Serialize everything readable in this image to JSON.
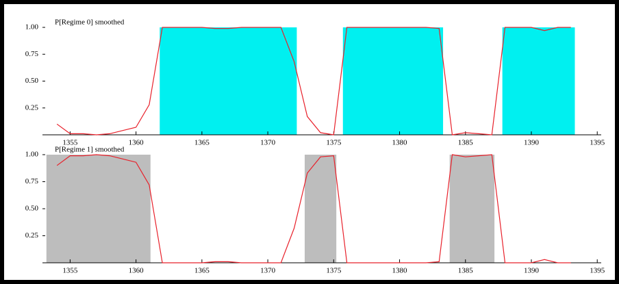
{
  "chart_data": [
    {
      "type": "line",
      "title": "P[Regime 0] smoothed",
      "color": "#e8202a",
      "shade_color": "#00f0f0",
      "x": [
        1354,
        1355,
        1356,
        1357,
        1358,
        1359,
        1360,
        1361,
        1362,
        1363,
        1364,
        1365,
        1366,
        1367,
        1368,
        1369,
        1370,
        1371,
        1372,
        1373,
        1374,
        1375,
        1376,
        1377,
        1378,
        1379,
        1380,
        1381,
        1382,
        1383,
        1384,
        1385,
        1386,
        1387,
        1388,
        1389,
        1390,
        1391,
        1392,
        1393
      ],
      "values": [
        0.1,
        0.01,
        0.01,
        0.0,
        0.01,
        0.04,
        0.07,
        0.28,
        1.0,
        1.0,
        1.0,
        1.0,
        0.99,
        0.99,
        1.0,
        1.0,
        1.0,
        1.0,
        0.68,
        0.17,
        0.02,
        0.0,
        1.0,
        1.0,
        1.0,
        1.0,
        1.0,
        1.0,
        1.0,
        0.99,
        0.0,
        0.02,
        0.01,
        0.0,
        1.0,
        1.0,
        1.0,
        0.97,
        1.0,
        1.0
      ],
      "shaded_regions": [
        {
          "start": 1361.8,
          "end": 1372.2
        },
        {
          "start": 1375.7,
          "end": 1383.3
        },
        {
          "start": 1387.8,
          "end": 1393.3
        }
      ],
      "xlim": [
        1352.9,
        1395.3
      ],
      "xticks": [
        1355,
        1360,
        1365,
        1370,
        1375,
        1380,
        1385,
        1390,
        1395
      ],
      "ylim": [
        0,
        1
      ],
      "yticks": [
        0.25,
        {
          "value": 0.5,
          "label": "0.50"
        },
        0.75,
        {
          "value": 1,
          "label": "1.00"
        }
      ]
    },
    {
      "type": "line",
      "title": "P[Regime 1] smoothed",
      "color": "#e8202a",
      "shade_color": "#bdbdbd",
      "x": [
        1354,
        1355,
        1356,
        1357,
        1358,
        1359,
        1360,
        1361,
        1362,
        1363,
        1364,
        1365,
        1366,
        1367,
        1368,
        1369,
        1370,
        1371,
        1372,
        1373,
        1374,
        1375,
        1376,
        1377,
        1378,
        1379,
        1380,
        1381,
        1382,
        1383,
        1384,
        1385,
        1386,
        1387,
        1388,
        1389,
        1390,
        1391,
        1392,
        1393
      ],
      "values": [
        0.9,
        0.99,
        0.99,
        1.0,
        0.99,
        0.96,
        0.93,
        0.72,
        0.0,
        0.0,
        0.0,
        0.0,
        0.01,
        0.01,
        0.0,
        0.0,
        0.0,
        0.0,
        0.32,
        0.83,
        0.98,
        0.99,
        0.0,
        0.0,
        0.0,
        0.0,
        0.0,
        0.0,
        0.0,
        0.01,
        1.0,
        0.98,
        0.99,
        1.0,
        0.0,
        0.0,
        0.0,
        0.03,
        0.0,
        0.0
      ],
      "shaded_regions": [
        {
          "start": 1353.2,
          "end": 1361.1
        },
        {
          "start": 1372.8,
          "end": 1375.2
        },
        {
          "start": 1383.8,
          "end": 1387.2
        }
      ],
      "xlim": [
        1352.9,
        1395.3
      ],
      "xticks": [
        1355,
        1360,
        1365,
        1370,
        1375,
        1380,
        1385,
        1390,
        1395
      ],
      "ylim": [
        0,
        1
      ],
      "yticks": [
        0.25,
        {
          "value": 0.5,
          "label": "0.50"
        },
        0.75,
        {
          "value": 1,
          "label": "1.00"
        }
      ]
    }
  ]
}
